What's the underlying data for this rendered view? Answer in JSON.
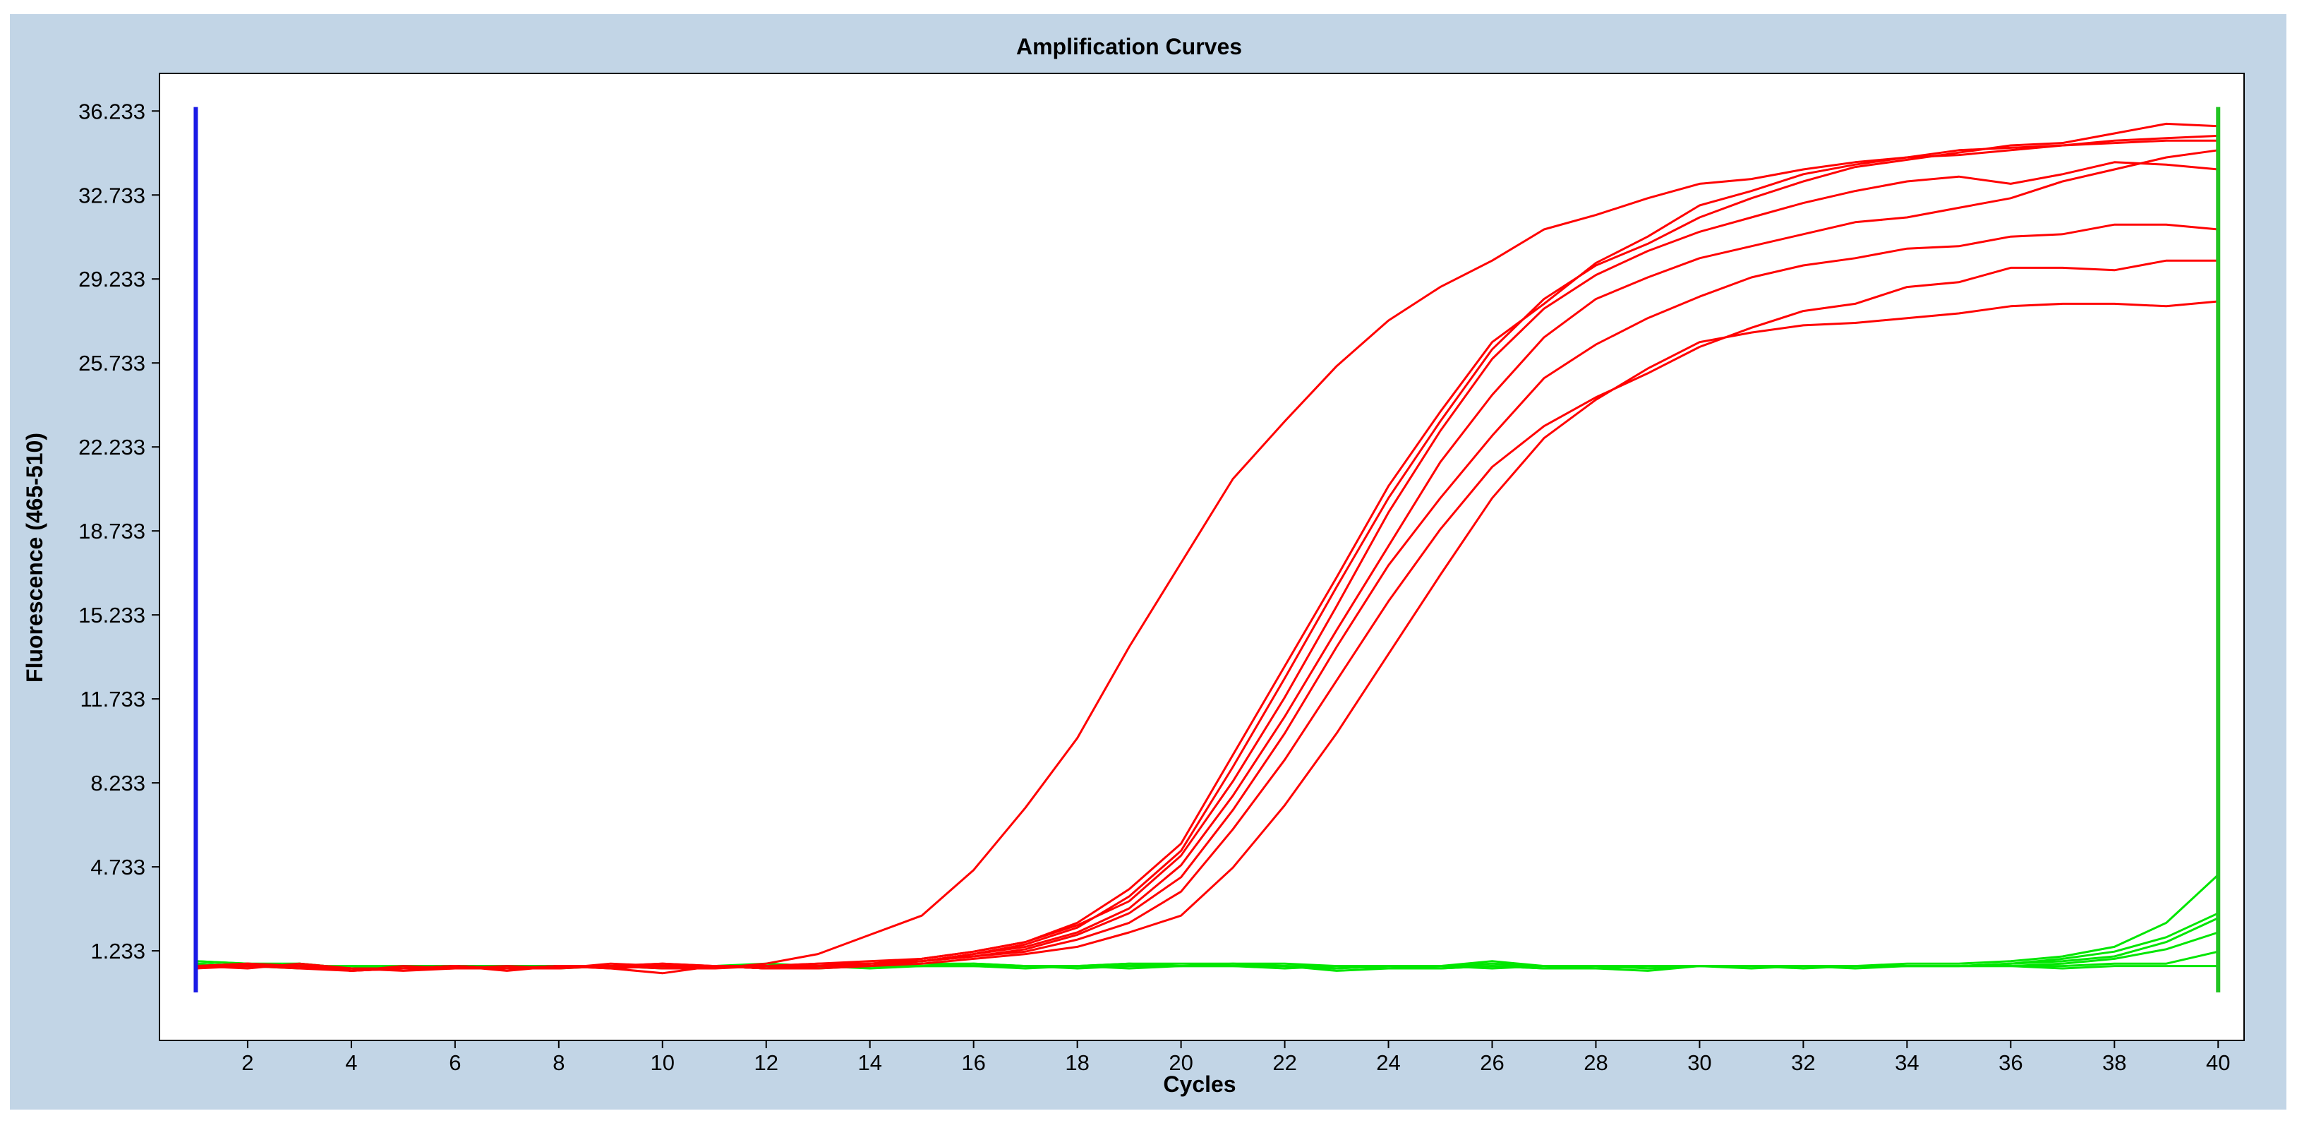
{
  "chart_data": {
    "type": "line",
    "title": "Amplification Curves",
    "xlabel": "Cycles",
    "ylabel": "Fluorescence (465-510)",
    "xlim": [
      0.3,
      40.5
    ],
    "ylim": [
      -2.5,
      37.8
    ],
    "grid": false,
    "x_ticks": [
      2,
      4,
      6,
      8,
      10,
      12,
      14,
      16,
      18,
      20,
      22,
      24,
      26,
      28,
      30,
      32,
      34,
      36,
      38,
      40
    ],
    "y_ticks": [
      1.233,
      4.733,
      8.233,
      11.733,
      15.233,
      18.733,
      22.233,
      25.733,
      29.233,
      32.733,
      36.233
    ],
    "y_tick_labels": [
      "1.233",
      "4.733",
      "8.233",
      "11.733",
      "15.233",
      "18.733",
      "22.233",
      "25.733",
      "29.233",
      "32.733",
      "36.233"
    ],
    "markers": [
      {
        "x": 1,
        "color": "#1a1ae6"
      },
      {
        "x": 40,
        "color": "#22c422"
      }
    ],
    "x": [
      1,
      2,
      3,
      4,
      5,
      6,
      7,
      8,
      9,
      10,
      11,
      12,
      13,
      14,
      15,
      16,
      17,
      18,
      19,
      20,
      21,
      22,
      23,
      24,
      25,
      26,
      27,
      28,
      29,
      30,
      31,
      32,
      33,
      34,
      35,
      36,
      37,
      38,
      39,
      40
    ],
    "series": [
      {
        "color": "#ff0000",
        "values": [
          0.6,
          0.7,
          0.5,
          0.4,
          0.5,
          0.6,
          0.5,
          0.6,
          0.6,
          0.5,
          0.5,
          0.7,
          1.1,
          1.9,
          2.7,
          4.6,
          7.2,
          10.1,
          13.9,
          17.4,
          20.9,
          23.3,
          25.6,
          27.5,
          28.9,
          30.0,
          31.3,
          31.9,
          32.6,
          33.2,
          33.4,
          33.8,
          34.1,
          34.3,
          34.6,
          34.7,
          34.8,
          34.9,
          35.0,
          35.0
        ]
      },
      {
        "color": "#ff0000",
        "values": [
          0.5,
          0.6,
          0.6,
          0.4,
          0.5,
          0.6,
          0.4,
          0.6,
          0.6,
          0.7,
          0.6,
          0.5,
          0.6,
          0.7,
          0.9,
          1.2,
          1.6,
          2.4,
          3.8,
          5.7,
          9.4,
          13.1,
          16.8,
          20.6,
          23.7,
          26.6,
          28.2,
          29.9,
          31.0,
          32.3,
          32.9,
          33.6,
          34.0,
          34.3,
          34.4,
          34.6,
          34.8,
          35.0,
          35.1,
          35.2
        ]
      },
      {
        "color": "#ff0000",
        "values": [
          0.6,
          0.5,
          0.7,
          0.5,
          0.4,
          0.5,
          0.6,
          0.5,
          0.7,
          0.6,
          0.6,
          0.5,
          0.6,
          0.7,
          0.8,
          1.1,
          1.5,
          2.2,
          3.5,
          5.4,
          8.9,
          12.6,
          16.4,
          20.1,
          23.3,
          26.3,
          28.4,
          29.8,
          30.7,
          31.8,
          32.6,
          33.3,
          33.9,
          34.2,
          34.5,
          34.8,
          34.9,
          35.3,
          35.7,
          35.6
        ]
      },
      {
        "color": "#ff0000",
        "values": [
          0.5,
          0.7,
          0.6,
          0.4,
          0.6,
          0.5,
          0.5,
          0.6,
          0.5,
          0.6,
          0.5,
          0.6,
          0.7,
          0.8,
          0.9,
          1.2,
          1.6,
          2.3,
          3.3,
          5.2,
          8.3,
          11.8,
          15.6,
          19.5,
          22.9,
          25.9,
          28.0,
          29.4,
          30.4,
          31.2,
          31.8,
          32.4,
          32.9,
          33.3,
          33.5,
          33.2,
          33.6,
          34.1,
          34.0,
          33.8
        ]
      },
      {
        "color": "#ff0000",
        "values": [
          0.6,
          0.6,
          0.5,
          0.5,
          0.5,
          0.6,
          0.5,
          0.6,
          0.6,
          0.7,
          0.6,
          0.6,
          0.6,
          0.7,
          0.8,
          1.1,
          1.4,
          2.0,
          3.0,
          4.8,
          7.7,
          11.0,
          14.6,
          18.1,
          21.6,
          24.4,
          26.8,
          28.4,
          29.3,
          30.1,
          30.6,
          31.1,
          31.6,
          31.8,
          32.2,
          32.6,
          33.3,
          33.8,
          34.3,
          34.6
        ]
      },
      {
        "color": "#ff0000",
        "values": [
          0.6,
          0.6,
          0.6,
          0.5,
          0.5,
          0.6,
          0.5,
          0.5,
          0.6,
          0.6,
          0.6,
          0.5,
          0.6,
          0.6,
          0.8,
          1.0,
          1.3,
          1.9,
          2.8,
          4.3,
          7.1,
          10.3,
          13.9,
          17.3,
          20.1,
          22.7,
          25.1,
          26.5,
          27.6,
          28.5,
          29.3,
          29.8,
          30.1,
          30.5,
          30.6,
          31.0,
          31.1,
          31.5,
          31.5,
          31.3
        ]
      },
      {
        "color": "#ff0000",
        "values": [
          0.6,
          0.7,
          0.6,
          0.5,
          0.5,
          0.6,
          0.5,
          0.6,
          0.6,
          0.6,
          0.6,
          0.6,
          0.7,
          0.7,
          0.8,
          1.0,
          1.2,
          1.7,
          2.4,
          3.7,
          6.3,
          9.2,
          12.5,
          15.8,
          18.8,
          21.4,
          23.1,
          24.3,
          25.3,
          26.4,
          27.2,
          27.9,
          28.2,
          28.9,
          29.1,
          29.7,
          29.7,
          29.6,
          30.0,
          30.0
        ]
      },
      {
        "color": "#ff0000",
        "values": [
          0.6,
          0.6,
          0.6,
          0.4,
          0.5,
          0.5,
          0.5,
          0.6,
          0.5,
          0.3,
          0.6,
          0.5,
          0.5,
          0.6,
          0.7,
          0.9,
          1.1,
          1.4,
          2.0,
          2.7,
          4.7,
          7.3,
          10.3,
          13.6,
          16.9,
          20.1,
          22.6,
          24.2,
          25.5,
          26.6,
          27.0,
          27.3,
          27.4,
          27.6,
          27.8,
          28.1,
          28.2,
          28.2,
          28.1,
          28.3
        ]
      },
      {
        "color": "#00e600",
        "values": [
          0.8,
          0.7,
          0.7,
          0.5,
          0.6,
          0.6,
          0.6,
          0.5,
          0.6,
          0.6,
          0.6,
          0.7,
          0.6,
          0.6,
          0.7,
          0.7,
          0.6,
          0.6,
          0.7,
          0.7,
          0.7,
          0.7,
          0.6,
          0.6,
          0.6,
          0.8,
          0.6,
          0.6,
          0.6,
          0.6,
          0.6,
          0.6,
          0.6,
          0.7,
          0.7,
          0.8,
          1.0,
          1.4,
          2.4,
          4.4
        ]
      },
      {
        "color": "#00e600",
        "values": [
          0.7,
          0.6,
          0.6,
          0.5,
          0.6,
          0.6,
          0.5,
          0.6,
          0.6,
          0.6,
          0.6,
          0.6,
          0.6,
          0.6,
          0.6,
          0.7,
          0.6,
          0.6,
          0.7,
          0.6,
          0.7,
          0.6,
          0.5,
          0.6,
          0.6,
          0.7,
          0.6,
          0.6,
          0.5,
          0.6,
          0.6,
          0.6,
          0.6,
          0.6,
          0.6,
          0.7,
          0.9,
          1.2,
          1.8,
          2.8
        ]
      },
      {
        "color": "#00e600",
        "values": [
          0.8,
          0.7,
          0.6,
          0.5,
          0.5,
          0.6,
          0.6,
          0.6,
          0.6,
          0.6,
          0.6,
          0.5,
          0.6,
          0.5,
          0.6,
          0.6,
          0.6,
          0.5,
          0.6,
          0.6,
          0.6,
          0.6,
          0.4,
          0.5,
          0.6,
          0.6,
          0.6,
          0.5,
          0.4,
          0.6,
          0.6,
          0.5,
          0.6,
          0.6,
          0.6,
          0.7,
          0.8,
          1.0,
          1.6,
          2.6
        ]
      },
      {
        "color": "#00e600",
        "values": [
          0.7,
          0.6,
          0.7,
          0.5,
          0.6,
          0.5,
          0.6,
          0.6,
          0.6,
          0.6,
          0.6,
          0.6,
          0.5,
          0.6,
          0.6,
          0.6,
          0.5,
          0.6,
          0.6,
          0.6,
          0.6,
          0.5,
          0.6,
          0.6,
          0.6,
          0.5,
          0.6,
          0.6,
          0.6,
          0.6,
          0.6,
          0.6,
          0.6,
          0.6,
          0.6,
          0.6,
          0.7,
          0.9,
          1.3,
          2.0
        ]
      },
      {
        "color": "#00e600",
        "values": [
          0.6,
          0.6,
          0.5,
          0.6,
          0.5,
          0.5,
          0.6,
          0.6,
          0.6,
          0.5,
          0.6,
          0.6,
          0.6,
          0.6,
          0.6,
          0.6,
          0.6,
          0.6,
          0.5,
          0.6,
          0.6,
          0.6,
          0.6,
          0.5,
          0.5,
          0.6,
          0.5,
          0.5,
          0.6,
          0.6,
          0.6,
          0.6,
          0.5,
          0.6,
          0.6,
          0.6,
          0.6,
          0.7,
          0.7,
          1.2
        ]
      },
      {
        "color": "#00e600",
        "values": [
          0.7,
          0.6,
          0.6,
          0.6,
          0.6,
          0.6,
          0.6,
          0.6,
          0.6,
          0.6,
          0.6,
          0.5,
          0.6,
          0.6,
          0.6,
          0.6,
          0.6,
          0.6,
          0.6,
          0.6,
          0.6,
          0.6,
          0.5,
          0.6,
          0.5,
          0.6,
          0.5,
          0.6,
          0.6,
          0.6,
          0.5,
          0.6,
          0.6,
          0.6,
          0.6,
          0.6,
          0.5,
          0.6,
          0.6,
          0.6
        ]
      }
    ]
  }
}
